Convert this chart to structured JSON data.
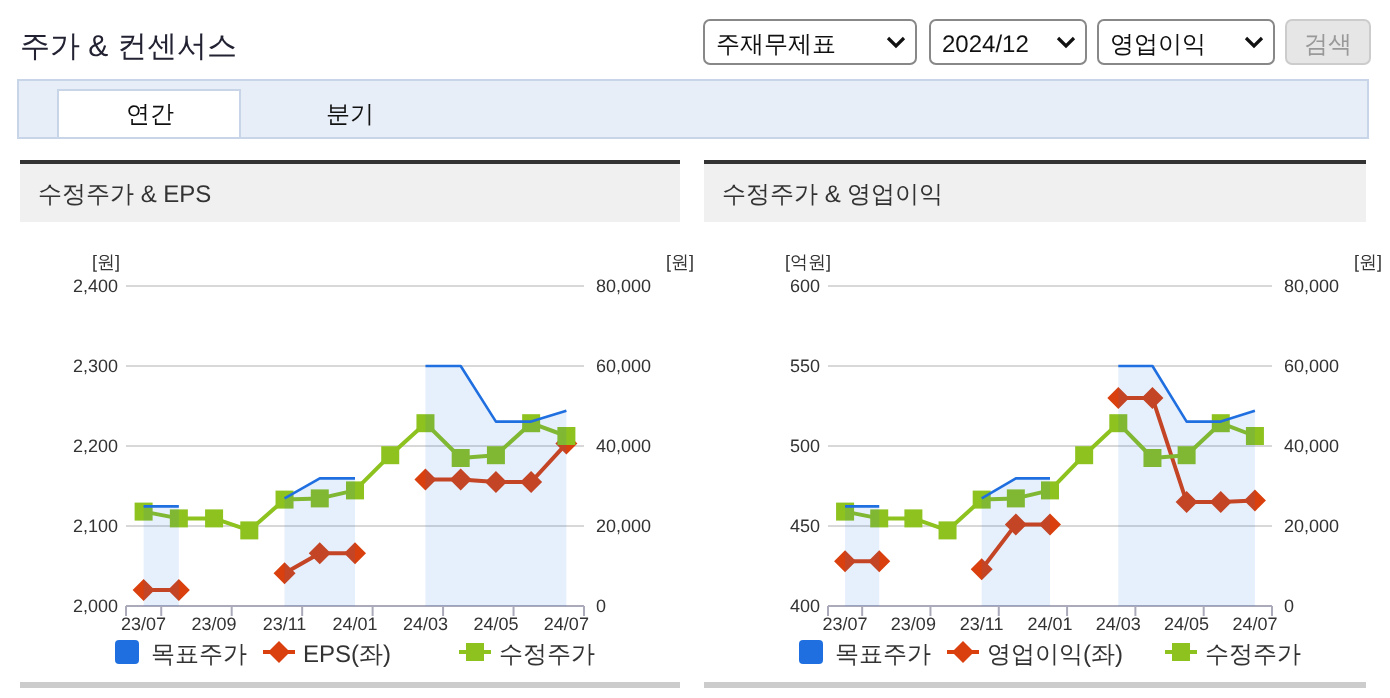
{
  "chart_data": [
    {
      "type": "other",
      "title": "주가 & 컨센서스",
      "annotations": [
        "주재무제표",
        "2024/12",
        "영업이익",
        "검색",
        "연간",
        "분기"
      ]
    },
    {
      "type": "line",
      "title": "수정주가 & EPS",
      "ylabel": "[원]",
      "y2label": "[원]",
      "categories": [
        "23/07",
        null,
        "23/09",
        null,
        "23/11",
        null,
        "24/01",
        null,
        "24/03",
        null,
        "24/05",
        null,
        "24/07"
      ],
      "ylim": [
        2000,
        2400
      ],
      "yticks": [
        {
          "value": 2000,
          "label": "2,000"
        },
        {
          "value": 2100,
          "label": "2,100"
        },
        {
          "value": 2200,
          "label": "2,200"
        },
        {
          "value": 2300,
          "label": "2,300"
        },
        {
          "value": 2400,
          "label": "2,400"
        }
      ],
      "y2lim": [
        0,
        80000
      ],
      "y2ticks": [
        0,
        {
          "value": 20000,
          "label": "20,000"
        },
        {
          "value": 40000,
          "label": "40,000"
        },
        {
          "value": 60000,
          "label": "60,000"
        },
        {
          "value": 80000,
          "label": "80,000"
        }
      ],
      "grid": "y",
      "legend": "bottom",
      "series": [
        {
          "name": "목표주가",
          "type": "area",
          "axis": "y2",
          "color": "#1f6fe0",
          "values": [
            24900,
            24900,
            null,
            null,
            26900,
            31900,
            31900,
            null,
            60000,
            60000,
            46100,
            46100,
            48800
          ]
        },
        {
          "name": "EPS(좌)",
          "type": "line",
          "marker": "diamond",
          "color": "#d9400e",
          "values": [
            2020,
            2020,
            null,
            null,
            2041,
            2066,
            2066,
            null,
            2158,
            2158,
            2155,
            2155,
            2203
          ]
        },
        {
          "name": "수정주가",
          "type": "line",
          "marker": "square",
          "axis": "y2",
          "color": "#8dc21f",
          "values": [
            23600,
            21900,
            21900,
            18900,
            26600,
            26900,
            28900,
            37700,
            45700,
            37000,
            37700,
            45700,
            42500
          ]
        }
      ]
    },
    {
      "type": "line",
      "title": "수정주가 & 영업이익",
      "ylabel": "[억원]",
      "y2label": "[원]",
      "categories": [
        "23/07",
        null,
        "23/09",
        null,
        "23/11",
        null,
        "24/01",
        null,
        "24/03",
        null,
        "24/05",
        null,
        "24/07"
      ],
      "ylim": [
        400,
        600
      ],
      "yticks": [
        400,
        450,
        500,
        550,
        600
      ],
      "y2lim": [
        0,
        80000
      ],
      "y2ticks": [
        0,
        {
          "value": 20000,
          "label": "20,000"
        },
        {
          "value": 40000,
          "label": "40,000"
        },
        {
          "value": 60000,
          "label": "60,000"
        },
        {
          "value": 80000,
          "label": "80,000"
        }
      ],
      "grid": "y",
      "legend": "bottom",
      "series": [
        {
          "name": "목표주가",
          "type": "area",
          "axis": "y2",
          "color": "#1f6fe0",
          "values": [
            24900,
            24900,
            null,
            null,
            26900,
            31900,
            31900,
            null,
            60000,
            60000,
            46100,
            46100,
            48800
          ]
        },
        {
          "name": "영업이익(좌)",
          "type": "line",
          "marker": "diamond",
          "color": "#d9400e",
          "values": [
            428,
            428,
            null,
            null,
            423,
            451,
            451,
            null,
            530,
            530,
            465,
            465,
            466
          ]
        },
        {
          "name": "수정주가",
          "type": "line",
          "marker": "square",
          "axis": "y2",
          "color": "#8dc21f",
          "values": [
            23600,
            21900,
            21900,
            18900,
            26600,
            26900,
            28900,
            37700,
            45700,
            37000,
            37700,
            45700,
            42500
          ]
        }
      ]
    }
  ]
}
